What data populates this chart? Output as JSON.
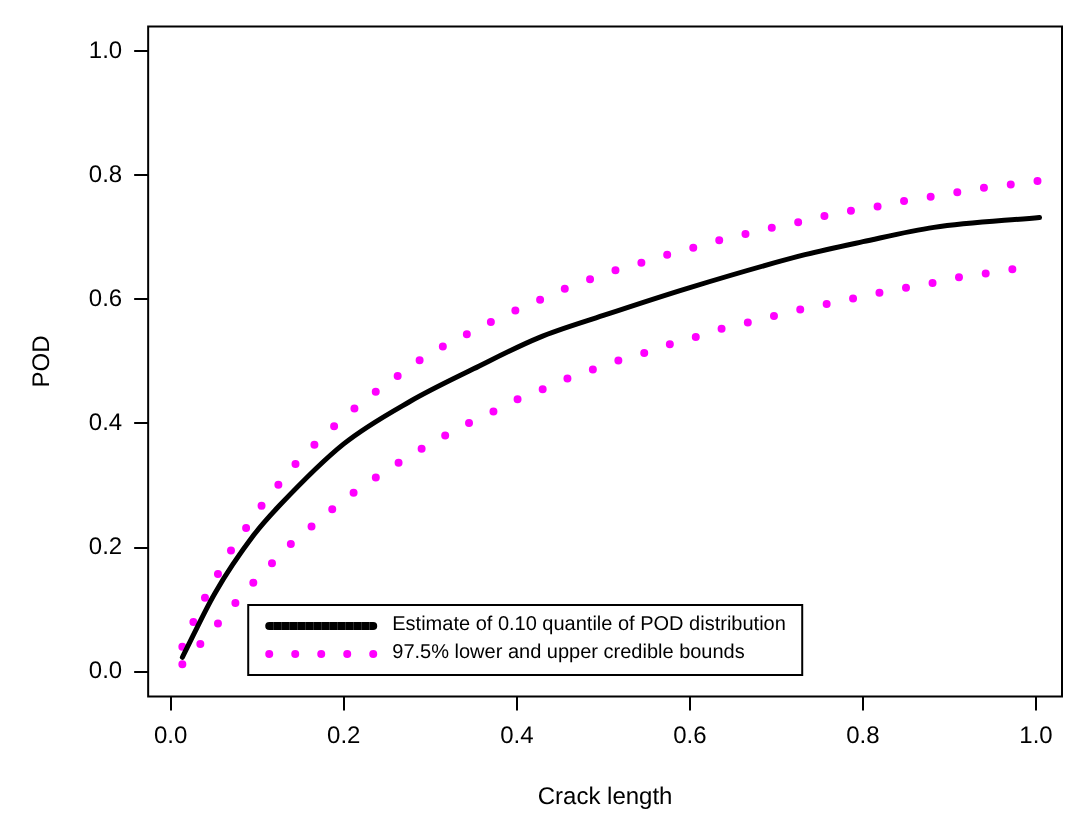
{
  "chart_data": {
    "type": "line",
    "xlabel": "Crack length",
    "ylabel": "POD",
    "xlim": [
      -0.026,
      1.03
    ],
    "ylim": [
      -0.04,
      1.04
    ],
    "xticks": [
      {
        "value": 0,
        "label": "0.0"
      },
      {
        "value": 0.2,
        "label": "0.2"
      },
      {
        "value": 0.4,
        "label": "0.4"
      },
      {
        "value": 0.6,
        "label": "0.6"
      },
      {
        "value": 0.8,
        "label": "0.8"
      },
      {
        "value": 1,
        "label": "1.0"
      }
    ],
    "yticks": [
      {
        "value": 0,
        "label": "0.0"
      },
      {
        "value": 0.2,
        "label": "0.2"
      },
      {
        "value": 0.4,
        "label": "0.4"
      },
      {
        "value": 0.6,
        "label": "0.6"
      },
      {
        "value": 0.8,
        "label": "0.8"
      },
      {
        "value": 1,
        "label": "1.0"
      }
    ],
    "grid": false,
    "legend": "bottom",
    "marker": "none",
    "series": [
      {
        "name": "Estimate of 0.10 quantile of POD distribution",
        "color": "#000000",
        "line_style": "solid",
        "x": [
          0.0135,
          0.051,
          0.096,
          0.126,
          0.2,
          0.276,
          0.35,
          0.425,
          0.5,
          0.6,
          0.733,
          0.8,
          0.882,
          1.004
        ],
        "values": [
          0.023,
          0.126,
          0.22,
          0.268,
          0.367,
          0.435,
          0.488,
          0.538,
          0.574,
          0.619,
          0.672,
          0.693,
          0.716,
          0.732
        ]
      },
      {
        "name": "97.5% lower and upper credible bounds",
        "color": "#ff00ff",
        "line_style": "dotted",
        "x": [
          0.0135,
          0.027,
          0.04,
          0.055,
          0.07,
          0.088,
          0.106,
          0.125,
          0.145,
          0.167,
          0.19,
          0.213,
          0.238,
          0.263,
          0.289,
          0.316,
          0.344,
          0.372,
          0.4,
          0.428,
          0.457,
          0.486,
          0.516,
          0.546,
          0.576,
          0.606,
          0.636,
          0.666,
          0.697,
          0.727,
          0.757,
          0.787,
          0.818,
          0.849,
          0.88,
          0.91,
          0.94,
          0.971,
          1.002
        ],
        "values": [
          0.04,
          0.082,
          0.12,
          0.158,
          0.196,
          0.233,
          0.269,
          0.302,
          0.336,
          0.367,
          0.397,
          0.425,
          0.452,
          0.477,
          0.503,
          0.525,
          0.545,
          0.565,
          0.583,
          0.6,
          0.618,
          0.633,
          0.648,
          0.66,
          0.673,
          0.684,
          0.696,
          0.706,
          0.716,
          0.725,
          0.735,
          0.743,
          0.75,
          0.759,
          0.766,
          0.773,
          0.78,
          0.785,
          0.791
        ]
      },
      {
        "color": "#ff00ff",
        "line_style": "dotted",
        "x": [
          0.0135,
          0.034,
          0.055,
          0.075,
          0.096,
          0.118,
          0.139,
          0.163,
          0.187,
          0.212,
          0.237,
          0.264,
          0.291,
          0.318,
          0.345,
          0.374,
          0.401,
          0.43,
          0.458,
          0.488,
          0.519,
          0.548,
          0.578,
          0.608,
          0.638,
          0.668,
          0.699,
          0.729,
          0.76,
          0.79,
          0.82,
          0.851,
          0.882,
          0.913,
          0.943,
          0.974
        ],
        "values": [
          0.012,
          0.044,
          0.078,
          0.111,
          0.144,
          0.176,
          0.206,
          0.234,
          0.262,
          0.289,
          0.313,
          0.337,
          0.36,
          0.381,
          0.401,
          0.42,
          0.439,
          0.455,
          0.472,
          0.487,
          0.502,
          0.514,
          0.528,
          0.54,
          0.553,
          0.563,
          0.574,
          0.584,
          0.593,
          0.602,
          0.611,
          0.619,
          0.627,
          0.636,
          0.642,
          0.649
        ]
      }
    ]
  }
}
